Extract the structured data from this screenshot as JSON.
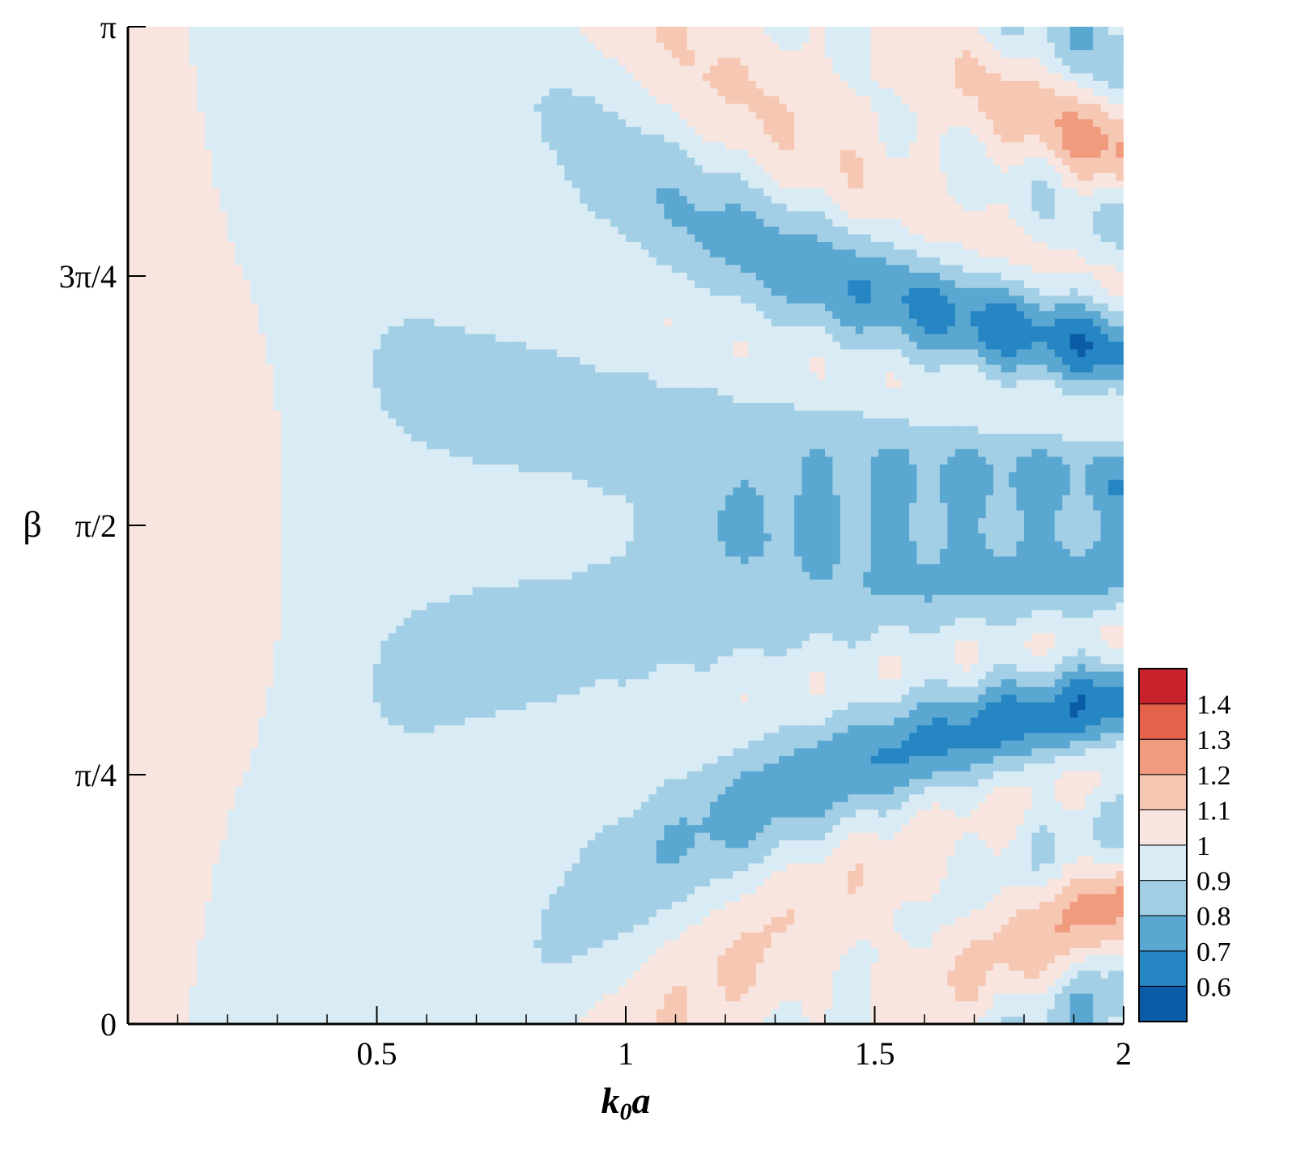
{
  "chart_data": {
    "type": "heatmap",
    "title": "",
    "xlabel": "k0a",
    "xlabel_parts": {
      "main": "k",
      "sub": "0",
      "rest": "a"
    },
    "ylabel": "β",
    "xlim": [
      0.0,
      2.0
    ],
    "ylim": [
      0.0,
      3.14159
    ],
    "x_ticks": [
      {
        "value": 0.5,
        "label": "0.5"
      },
      {
        "value": 1.0,
        "label": "1"
      },
      {
        "value": 1.5,
        "label": "1.5"
      },
      {
        "value": 2.0,
        "label": "2"
      }
    ],
    "y_ticks": [
      {
        "value": 0,
        "label": "0"
      },
      {
        "value": 0.7854,
        "label": "π/4"
      },
      {
        "value": 1.5708,
        "label": "π/2"
      },
      {
        "value": 2.3562,
        "label": "3π/4"
      },
      {
        "value": 3.14159,
        "label": "π"
      }
    ],
    "colorbar": {
      "placement": "right-bottom",
      "levels": [
        0.55,
        0.6,
        0.7,
        0.8,
        0.9,
        1.0,
        1.1,
        1.2,
        1.3,
        1.4,
        1.45
      ],
      "colors": [
        "#0a5ca6",
        "#2686c4",
        "#5aa8d2",
        "#a3cfe6",
        "#d9ebf4",
        "#f9e5df",
        "#f6c7b2",
        "#f09b7d",
        "#e4614a",
        "#c8232c"
      ],
      "labels": [
        "0.6",
        "0.7",
        "0.8",
        "0.9",
        "1",
        "1.1",
        "1.2",
        "1.3",
        "1.4"
      ]
    },
    "grid": false,
    "description": "Contour map of ratio (~0.6–1.4) vs k0a and beta; fringes fan out symmetrically about beta=pi/2 and intensify as k0a increases."
  }
}
